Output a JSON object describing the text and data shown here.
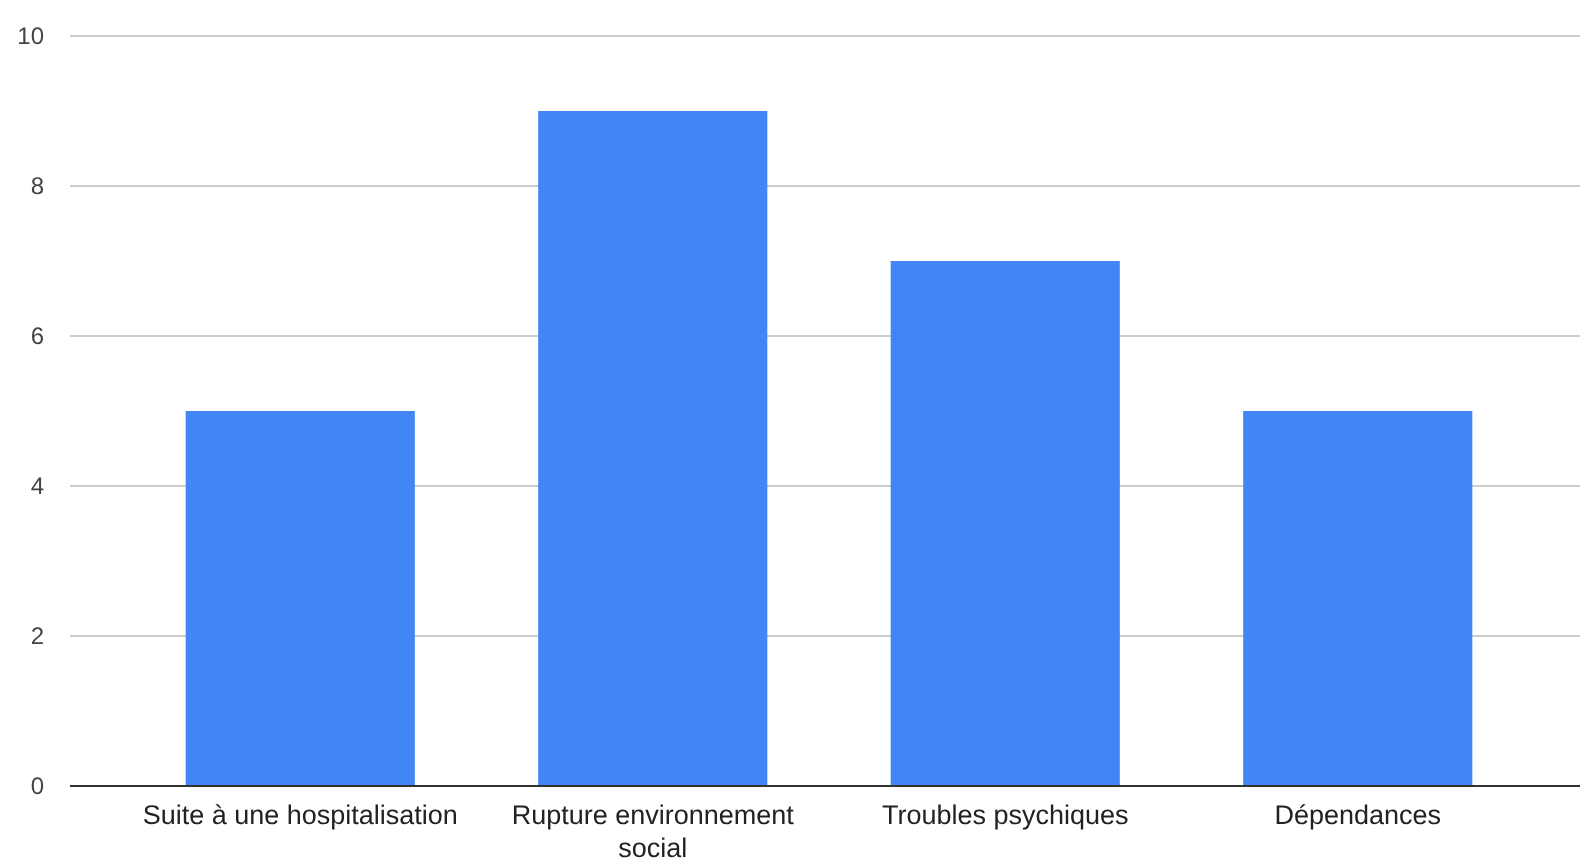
{
  "chart_data": {
    "type": "bar",
    "categories": [
      "Suite à une hospitalisation",
      "Rupture environnement social",
      "Troubles psychiques",
      "Dépendances"
    ],
    "values": [
      5,
      9,
      7,
      5
    ],
    "color": "#4285f4",
    "ylim": [
      0,
      10
    ],
    "yticks": [
      0,
      2,
      4,
      6,
      8,
      10
    ],
    "grid": "y"
  }
}
